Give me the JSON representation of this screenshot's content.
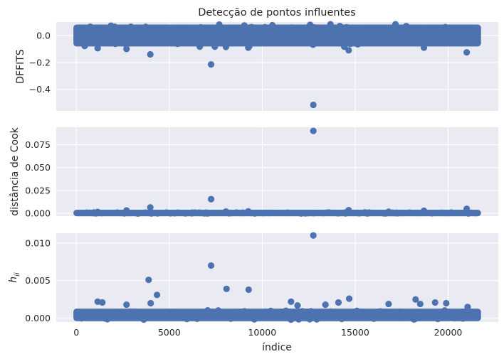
{
  "chart_data": {
    "type": "scatter",
    "title": "Detecção de pontos influentes",
    "xlabel": "índice",
    "marker_color": "#4C72B0",
    "background": "#EAEAF2",
    "grid": true,
    "xlim": [
      -1080,
      22700
    ],
    "xticks": [
      0,
      5000,
      10000,
      15000,
      20000
    ],
    "xtick_labels": [
      "0",
      "5000",
      "10000",
      "15000",
      "20000"
    ],
    "n_points": 21613,
    "panels": [
      {
        "id": "dffits",
        "ylabel": "DFFITS",
        "ylim": [
          -0.56,
          0.1
        ],
        "yticks": [
          0.0,
          -0.2,
          -0.4
        ],
        "ytick_labels": [
          "0.0",
          "−0.2",
          "−0.4"
        ],
        "bulk_range": [
          -0.06,
          0.06
        ],
        "outliers": [
          {
            "x": 12750,
            "y": -0.515
          },
          {
            "x": 7250,
            "y": -0.215
          },
          {
            "x": 3980,
            "y": -0.14
          },
          {
            "x": 21000,
            "y": -0.125
          },
          {
            "x": 14650,
            "y": -0.11
          },
          {
            "x": 2700,
            "y": -0.1
          },
          {
            "x": 1150,
            "y": -0.095
          },
          {
            "x": 9250,
            "y": -0.09
          },
          {
            "x": 18700,
            "y": -0.09
          },
          {
            "x": 8050,
            "y": -0.085
          },
          {
            "x": 450,
            "y": -0.078
          },
          {
            "x": 17750,
            "y": 0.07
          },
          {
            "x": 750,
            "y": 0.065
          },
          {
            "x": 10150,
            "y": 0.062
          }
        ]
      },
      {
        "id": "cook",
        "ylabel": "distância de Cook",
        "ylim": [
          -0.003,
          0.094
        ],
        "yticks": [
          0.0,
          0.025,
          0.05,
          0.075
        ],
        "ytick_labels": [
          "0.000",
          "0.025",
          "0.050",
          "0.075"
        ],
        "bulk_range": [
          0.0,
          0.0008
        ],
        "outliers": [
          {
            "x": 12750,
            "y": 0.09
          },
          {
            "x": 7250,
            "y": 0.0155
          },
          {
            "x": 3980,
            "y": 0.0065
          },
          {
            "x": 21000,
            "y": 0.005
          },
          {
            "x": 14650,
            "y": 0.0035
          },
          {
            "x": 2700,
            "y": 0.0032
          },
          {
            "x": 18700,
            "y": 0.0028
          },
          {
            "x": 9250,
            "y": 0.0022
          },
          {
            "x": 8050,
            "y": 0.002
          },
          {
            "x": 16800,
            "y": 0.0018
          },
          {
            "x": 1150,
            "y": 0.0016
          }
        ]
      },
      {
        "id": "hii",
        "ylabel": "h_ii",
        "ylabel_main": "h",
        "ylabel_sub": "ii",
        "ylim": [
          -0.0005,
          0.0113
        ],
        "yticks": [
          0.0,
          0.005,
          0.01
        ],
        "ytick_labels": [
          "0.000",
          "0.005",
          "0.010"
        ],
        "bulk_range": [
          0.0,
          0.0009
        ],
        "outliers": [
          {
            "x": 12750,
            "y": 0.011
          },
          {
            "x": 7250,
            "y": 0.007
          },
          {
            "x": 3890,
            "y": 0.0051
          },
          {
            "x": 4340,
            "y": 0.0031
          },
          {
            "x": 8080,
            "y": 0.0039
          },
          {
            "x": 9270,
            "y": 0.0038
          },
          {
            "x": 14680,
            "y": 0.0026
          },
          {
            "x": 18250,
            "y": 0.0025
          },
          {
            "x": 19300,
            "y": 0.0021
          },
          {
            "x": 19900,
            "y": 0.002
          },
          {
            "x": 18500,
            "y": 0.0019
          },
          {
            "x": 16800,
            "y": 0.0019
          },
          {
            "x": 1150,
            "y": 0.0022
          },
          {
            "x": 1400,
            "y": 0.0021
          },
          {
            "x": 2700,
            "y": 0.0018
          },
          {
            "x": 11550,
            "y": 0.0022
          },
          {
            "x": 11900,
            "y": 0.0017
          },
          {
            "x": 13400,
            "y": 0.0018
          },
          {
            "x": 14100,
            "y": 0.0021
          },
          {
            "x": 4000,
            "y": 0.002
          },
          {
            "x": 21050,
            "y": 0.0015
          }
        ]
      }
    ]
  }
}
